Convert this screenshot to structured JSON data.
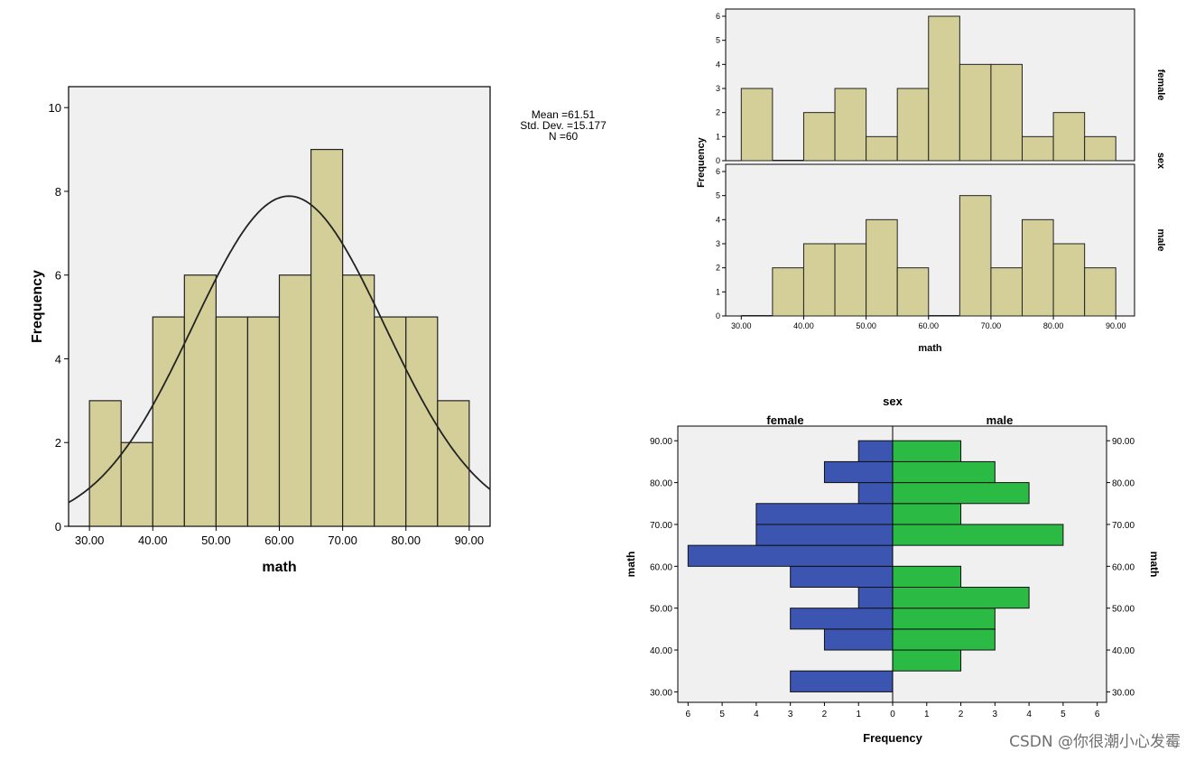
{
  "colors": {
    "bar": "#d4cf98",
    "plot_bg": "#f0f0f0",
    "female": "#3c55b0",
    "male": "#2bbb45",
    "curve": "#222222"
  },
  "watermark": "CSDN @你很潮小心发霉",
  "chart_data": [
    {
      "type": "bar",
      "id": "histogram",
      "xlabel": "math",
      "ylabel": "Frequency",
      "bin_width": 5,
      "bin_starts": [
        30,
        35,
        40,
        45,
        50,
        55,
        60,
        65,
        70,
        75,
        80,
        85
      ],
      "values": [
        3,
        2,
        5,
        6,
        5,
        5,
        6,
        9,
        6,
        5,
        5,
        3
      ],
      "xlim": [
        26.7,
        93.3
      ],
      "ylim": [
        0,
        10.5
      ],
      "x_ticks": [
        "30.00",
        "40.00",
        "50.00",
        "60.00",
        "70.00",
        "80.00",
        "90.00"
      ],
      "y_ticks": [
        "0",
        "2",
        "4",
        "6",
        "8",
        "10"
      ],
      "normal_curve": {
        "mean": 61.51,
        "sd": 15.177,
        "n": 60
      },
      "stats_text": [
        "Mean =61.51",
        "Std. Dev. =15.177",
        "N =60"
      ]
    },
    {
      "type": "bar",
      "id": "paneled_histogram",
      "xlabel": "math",
      "ylabel": "Frequency",
      "panel_var": "sex",
      "bin_width": 5,
      "bin_starts": [
        30,
        35,
        40,
        45,
        50,
        55,
        60,
        65,
        70,
        75,
        80,
        85
      ],
      "xlim": [
        27.5,
        93
      ],
      "ylim": [
        0,
        6.3
      ],
      "x_ticks": [
        "30.00",
        "40.00",
        "50.00",
        "60.00",
        "70.00",
        "80.00",
        "90.00"
      ],
      "y_ticks": [
        "0",
        "1",
        "2",
        "3",
        "4",
        "5",
        "6"
      ],
      "series": [
        {
          "name": "female",
          "values": [
            3,
            0,
            2,
            3,
            1,
            3,
            6,
            4,
            4,
            1,
            2,
            1
          ]
        },
        {
          "name": "male",
          "values": [
            0,
            2,
            3,
            3,
            4,
            2,
            0,
            5,
            2,
            4,
            3,
            2
          ]
        }
      ]
    },
    {
      "type": "bar",
      "id": "population_pyramid",
      "title": "sex",
      "xlabel": "Frequency",
      "ylabel": "math",
      "bin_width": 5,
      "bin_starts": [
        30,
        35,
        40,
        45,
        50,
        55,
        60,
        65,
        70,
        75,
        80,
        85
      ],
      "ylim": [
        27.5,
        93.5
      ],
      "xlim": [
        0,
        6.3
      ],
      "y_ticks": [
        "30.00",
        "40.00",
        "50.00",
        "60.00",
        "70.00",
        "80.00",
        "90.00"
      ],
      "x_ticks": [
        "0",
        "1",
        "2",
        "3",
        "4",
        "5",
        "6"
      ],
      "series": [
        {
          "name": "female",
          "values": [
            3,
            0,
            2,
            3,
            1,
            3,
            6,
            4,
            4,
            1,
            2,
            1
          ]
        },
        {
          "name": "male",
          "values": [
            0,
            2,
            3,
            3,
            4,
            2,
            0,
            5,
            2,
            4,
            3,
            2
          ]
        }
      ]
    }
  ]
}
